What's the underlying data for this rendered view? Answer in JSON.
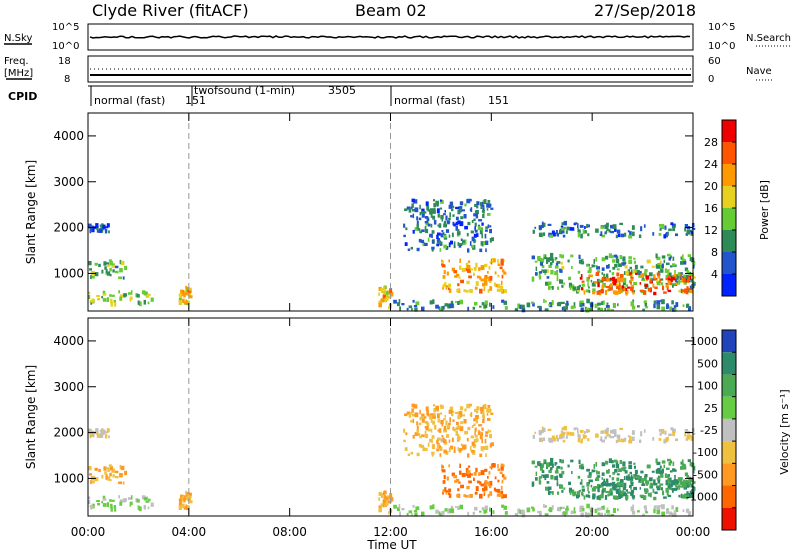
{
  "header": {
    "title": "Clyde River (fitACF)",
    "beam": "Beam 02",
    "date": "27/Sep/2018"
  },
  "top_panels": {
    "nsky_label": "N.Sky",
    "nsky_ticks": [
      "10^5",
      "10^0"
    ],
    "nsearch_label": "N.Search",
    "nsearch_ticks": [
      "10^5",
      "10^0"
    ],
    "freq_label_1": "Freq.",
    "freq_label_2": "[MHz]",
    "freq_ticks": [
      "18",
      "8"
    ],
    "nave_label": "Nave",
    "nave_ticks": [
      "60",
      "0"
    ],
    "cpid_label": "CPID"
  },
  "cpid_segments": [
    {
      "label": "normal (fast)",
      "code": "151"
    },
    {
      "label": "twofsound (1-min)",
      "code": "3505"
    },
    {
      "label": "normal (fast)",
      "code": "151"
    }
  ],
  "x_axis": {
    "label": "Time UT",
    "ticks": [
      "00:00",
      "04:00",
      "08:00",
      "12:00",
      "16:00",
      "20:00",
      "00:00"
    ],
    "range_hours": [
      0,
      24
    ]
  },
  "panels": {
    "y_label": "Slant Range [km]",
    "y_ticks": [
      "1000",
      "2000",
      "3000",
      "4000"
    ],
    "y_range": [
      180,
      4500
    ],
    "power": {
      "label": "Power [dB]",
      "scale_ticks": [
        "28",
        "24",
        "20",
        "16",
        "12",
        "8",
        "4"
      ],
      "colors": [
        "#0022ff",
        "#2255cc",
        "#2e8b57",
        "#66cc33",
        "#e8d020",
        "#ff9900",
        "#ff5500",
        "#ee0000"
      ]
    },
    "velocity": {
      "label": "Velocity [m s⁻¹]",
      "scale_ticks": [
        "1000",
        "500",
        "100",
        "25",
        "-25",
        "-100",
        "-500",
        "-1000"
      ],
      "colors": [
        "#2244bb",
        "#2e8b6a",
        "#4caa55",
        "#66cc44",
        "#c0c0c0",
        "#f0c040",
        "#ff9922",
        "#ff6600",
        "#ee1100"
      ]
    }
  },
  "chart_data": {
    "type": "heatmap",
    "title": "Clyde River (fitACF)",
    "xlabel": "Time UT",
    "ylabel": "Slant Range [km]",
    "xlim_hours": [
      0,
      24
    ],
    "ylim_km": [
      180,
      4500
    ],
    "mode_change_times_hours": [
      4.0,
      12.0
    ],
    "echo_regions": [
      {
        "t0": 0.0,
        "t1": 2.5,
        "r0": 300,
        "r1": 600,
        "power_db": 16,
        "velocity": 25
      },
      {
        "t0": 0.0,
        "t1": 1.5,
        "r0": 900,
        "r1": 1300,
        "power_db": 14,
        "velocity": -100
      },
      {
        "t0": 0.0,
        "t1": 0.8,
        "r0": 1900,
        "r1": 2050,
        "power_db": 8,
        "velocity": -25
      },
      {
        "t0": 3.6,
        "t1": 4.1,
        "r0": 350,
        "r1": 700,
        "power_db": 22,
        "velocity": -100
      },
      {
        "t0": 11.5,
        "t1": 12.0,
        "r0": 250,
        "r1": 700,
        "power_db": 22,
        "velocity": -100
      },
      {
        "t0": 12.5,
        "t1": 16.0,
        "r0": 1500,
        "r1": 2600,
        "power_db": 10,
        "velocity": -100
      },
      {
        "t0": 14.0,
        "t1": 16.5,
        "r0": 600,
        "r1": 1300,
        "power_db": 24,
        "velocity": -500
      },
      {
        "t0": 17.5,
        "t1": 24.0,
        "r0": 600,
        "r1": 1400,
        "power_db": 14,
        "velocity": 500
      },
      {
        "t0": 19.5,
        "t1": 24.0,
        "r0": 550,
        "r1": 1000,
        "power_db": 28,
        "velocity": 500
      },
      {
        "t0": 17.5,
        "t1": 24.0,
        "r0": 1800,
        "r1": 2100,
        "power_db": 10,
        "velocity": -25
      },
      {
        "t0": 12.0,
        "t1": 24.0,
        "r0": 200,
        "r1": 400,
        "power_db": 12,
        "velocity": 25
      }
    ]
  }
}
